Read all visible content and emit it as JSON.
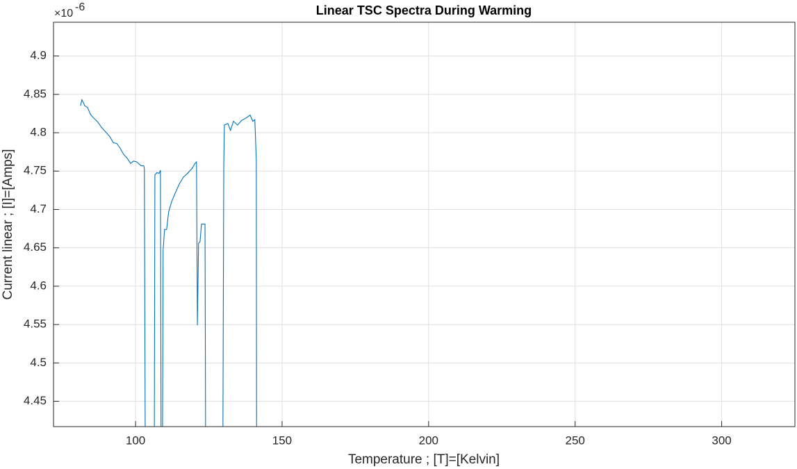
{
  "chart_data": {
    "type": "line",
    "title": "Linear TSC Spectra During Warming",
    "x_label": "Temperature ; [T]=[Kelvin]",
    "y_label": "Current linear ; [I]=[Amps]",
    "y_scale_base": "×10",
    "y_scale_power": "-6",
    "grid": true,
    "xlim": [
      72,
      325
    ],
    "ylim": [
      4.417,
      4.944
    ],
    "xticks": [
      100,
      150,
      200,
      250,
      300
    ],
    "yticks": [
      4.45,
      4.5,
      4.55,
      4.6,
      4.65,
      4.7,
      4.75,
      4.8,
      4.85,
      4.9
    ],
    "x": [
      81.2,
      81.7,
      82.7,
      83.6,
      84.6,
      85.7,
      86.9,
      88.4,
      89.8,
      91.2,
      92.4,
      93.6,
      94.7,
      95.9,
      97.1,
      98.3,
      99.3,
      100.4,
      101.9,
      102.8,
      103.0,
      103.3,
      106.4,
      106.6,
      107.3,
      108.0,
      108.5,
      108.7,
      109.2,
      109.4,
      109.9,
      110.6,
      111.3,
      112.3,
      113.5,
      114.9,
      116.3,
      117.7,
      119.2,
      120.3,
      120.8,
      121.1,
      121.5,
      122.0,
      122.5,
      123.7,
      123.9,
      129.8,
      130.1,
      130.3,
      131.5,
      132.4,
      133.4,
      134.8,
      136.2,
      137.6,
      139.1,
      140.0,
      140.7,
      141.2,
      141.3
    ],
    "series": [
      {
        "color": "#0072bd",
        "values": [
          4.835,
          4.843,
          4.835,
          4.833,
          4.824,
          4.819,
          4.815,
          4.807,
          4.801,
          4.795,
          4.787,
          4.786,
          4.78,
          4.772,
          4.767,
          4.76,
          4.763,
          4.762,
          4.757,
          4.757,
          4.753,
          4.4,
          4.4,
          4.745,
          4.748,
          4.747,
          4.751,
          4.4,
          4.4,
          4.647,
          4.674,
          4.674,
          4.697,
          4.71,
          4.721,
          4.733,
          4.742,
          4.747,
          4.753,
          4.76,
          4.762,
          4.549,
          4.656,
          4.658,
          4.681,
          4.681,
          4.4,
          4.4,
          4.756,
          4.81,
          4.812,
          4.803,
          4.815,
          4.81,
          4.816,
          4.819,
          4.823,
          4.815,
          4.817,
          4.765,
          4.4
        ]
      }
    ]
  }
}
